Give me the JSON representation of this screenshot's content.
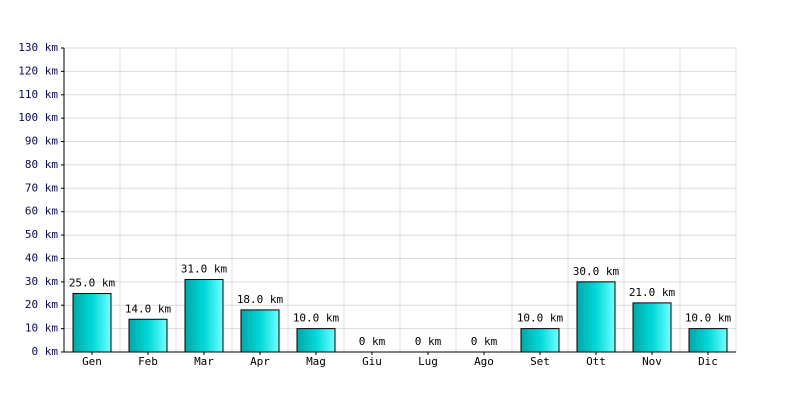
{
  "chart_data": {
    "type": "bar",
    "categories": [
      "Gen",
      "Feb",
      "Mar",
      "Apr",
      "Mag",
      "Giu",
      "Lug",
      "Ago",
      "Set",
      "Ott",
      "Nov",
      "Dic"
    ],
    "values": [
      25,
      14,
      31,
      18,
      10,
      0,
      0,
      0,
      10,
      30,
      21,
      10
    ],
    "value_labels": [
      "25.0 km",
      "14.0 km",
      "31.0 km",
      "18.0 km",
      "10.0 km",
      "0 km",
      "0 km",
      "0 km",
      "10.0 km",
      "30.0 km",
      "21.0 km",
      "10.0 km"
    ],
    "color": "#00c8c8",
    "ylim": [
      0,
      130
    ],
    "yticks": [
      {
        "value": 0,
        "label": "0 km"
      },
      {
        "value": 10,
        "label": "10 km"
      },
      {
        "value": 20,
        "label": "20 km"
      },
      {
        "value": 30,
        "label": "30 km"
      },
      {
        "value": 40,
        "label": "40 km"
      },
      {
        "value": 50,
        "label": "50 km"
      },
      {
        "value": 60,
        "label": "60 km"
      },
      {
        "value": 70,
        "label": "70 km"
      },
      {
        "value": 80,
        "label": "80 km"
      },
      {
        "value": 90,
        "label": "90 km"
      },
      {
        "value": 100,
        "label": "100 km"
      },
      {
        "value": 110,
        "label": "110 km"
      },
      {
        "value": 120,
        "label": "120 km"
      },
      {
        "value": 130,
        "label": "130 km"
      }
    ],
    "grid": true
  }
}
